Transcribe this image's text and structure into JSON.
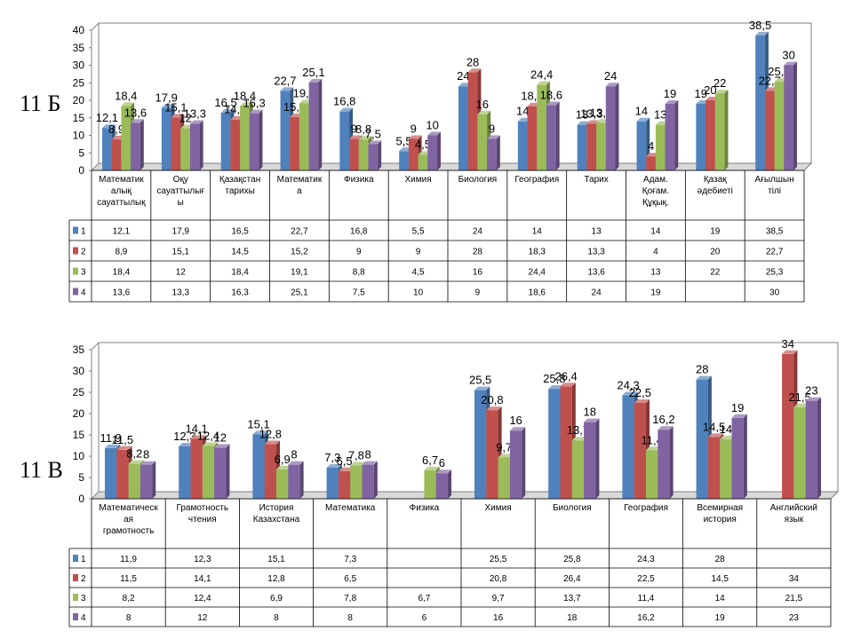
{
  "chart_data": [
    {
      "type": "bar",
      "side_label": "11 Б",
      "ylim": [
        0,
        40
      ],
      "yticks": [
        "0",
        "5",
        "10",
        "15",
        "20",
        "25",
        "30",
        "35",
        "40"
      ],
      "categories": [
        [
          "Математик",
          "алық",
          "сауаттылық"
        ],
        [
          "Оқу",
          "сауаттылығ",
          "ы"
        ],
        [
          "Қазақстан",
          "тарихы"
        ],
        [
          "Математик",
          "а"
        ],
        [
          "Физика"
        ],
        [
          "Химия"
        ],
        [
          "Биология"
        ],
        [
          "География"
        ],
        [
          "Тарих"
        ],
        [
          "Адам.",
          "Қоғам.",
          "Құқық."
        ],
        [
          "Қазақ",
          "әдебиеті"
        ],
        [
          "Ағылшын",
          "тілі"
        ]
      ],
      "series": [
        {
          "name": "1",
          "color": "#4f81bd",
          "values": [
            12.1,
            17.9,
            16.5,
            22.7,
            16.8,
            5.5,
            24,
            14,
            13,
            14,
            19,
            38.5
          ],
          "labels": [
            "12,1",
            "17,9",
            "16,5",
            "22,7",
            "16,8",
            "5,5",
            "24",
            "14",
            "13",
            "14",
            "19",
            "38,5"
          ]
        },
        {
          "name": "2",
          "color": "#c0504d",
          "values": [
            8.9,
            15.1,
            14.5,
            15.2,
            9,
            9,
            28,
            18.3,
            13.3,
            4,
            20,
            22.7
          ],
          "labels": [
            "8,9",
            "15,1",
            "14,5",
            "15,2",
            "9",
            "9",
            "28",
            "18,3",
            "13,3",
            "4",
            "20",
            "22,7"
          ]
        },
        {
          "name": "3",
          "color": "#9bbb59",
          "values": [
            18.4,
            12,
            18.4,
            19.1,
            8.8,
            4.5,
            16,
            24.4,
            13.6,
            13,
            22,
            25.3
          ],
          "labels": [
            "18,4",
            "12",
            "18,4",
            "19,1",
            "8,8",
            "4,5",
            "16",
            "24,4",
            "13,6",
            "13",
            "22",
            "25,3"
          ]
        },
        {
          "name": "4",
          "color": "#8064a2",
          "values": [
            13.6,
            13.3,
            16.3,
            25.1,
            7.5,
            10,
            9,
            18.6,
            24,
            19,
            null,
            30
          ],
          "labels": [
            "13,6",
            "13,3",
            "16,3",
            "25,1",
            "7,5",
            "10",
            "9",
            "18,6",
            "24",
            "19",
            "",
            "30"
          ]
        }
      ]
    },
    {
      "type": "bar",
      "side_label": "11 В",
      "ylim": [
        0,
        35
      ],
      "yticks": [
        "0",
        "5",
        "10",
        "15",
        "20",
        "25",
        "30",
        "35"
      ],
      "categories": [
        [
          "Математическ",
          "ая",
          "грамотность"
        ],
        [
          "Грамотность",
          "чтения"
        ],
        [
          "История",
          "Казахстана"
        ],
        [
          "Математика"
        ],
        [
          "Физика"
        ],
        [
          "Химия"
        ],
        [
          "Биология"
        ],
        [
          "География"
        ],
        [
          "Всемирная",
          "история"
        ],
        [
          "Английский",
          "язык"
        ]
      ],
      "series": [
        {
          "name": "1",
          "color": "#4f81bd",
          "values": [
            11.9,
            12.3,
            15.1,
            7.3,
            null,
            25.5,
            25.8,
            24.3,
            28,
            null
          ],
          "labels": [
            "11,9",
            "12,3",
            "15,1",
            "7,3",
            "",
            "25,5",
            "25,8",
            "24,3",
            "28",
            ""
          ]
        },
        {
          "name": "2",
          "color": "#c0504d",
          "values": [
            11.5,
            14.1,
            12.8,
            6.5,
            null,
            20.8,
            26.4,
            22.5,
            14.5,
            34
          ],
          "labels": [
            "11,5",
            "14,1",
            "12,8",
            "6,5",
            "",
            "20,8",
            "26,4",
            "22,5",
            "14,5",
            "34"
          ]
        },
        {
          "name": "3",
          "color": "#9bbb59",
          "values": [
            8.2,
            12.4,
            6.9,
            7.8,
            6.7,
            9.7,
            13.7,
            11.4,
            14,
            21.5
          ],
          "labels": [
            "8,2",
            "12,4",
            "6,9",
            "7,8",
            "6,7",
            "9,7",
            "13,7",
            "11,4",
            "14",
            "21,5"
          ]
        },
        {
          "name": "4",
          "color": "#8064a2",
          "values": [
            8,
            12,
            8,
            8,
            6,
            16,
            18,
            16.2,
            19,
            23
          ],
          "labels": [
            "8",
            "12",
            "8",
            "8",
            "6",
            "16",
            "18",
            "16,2",
            "19",
            "23"
          ]
        }
      ]
    }
  ]
}
